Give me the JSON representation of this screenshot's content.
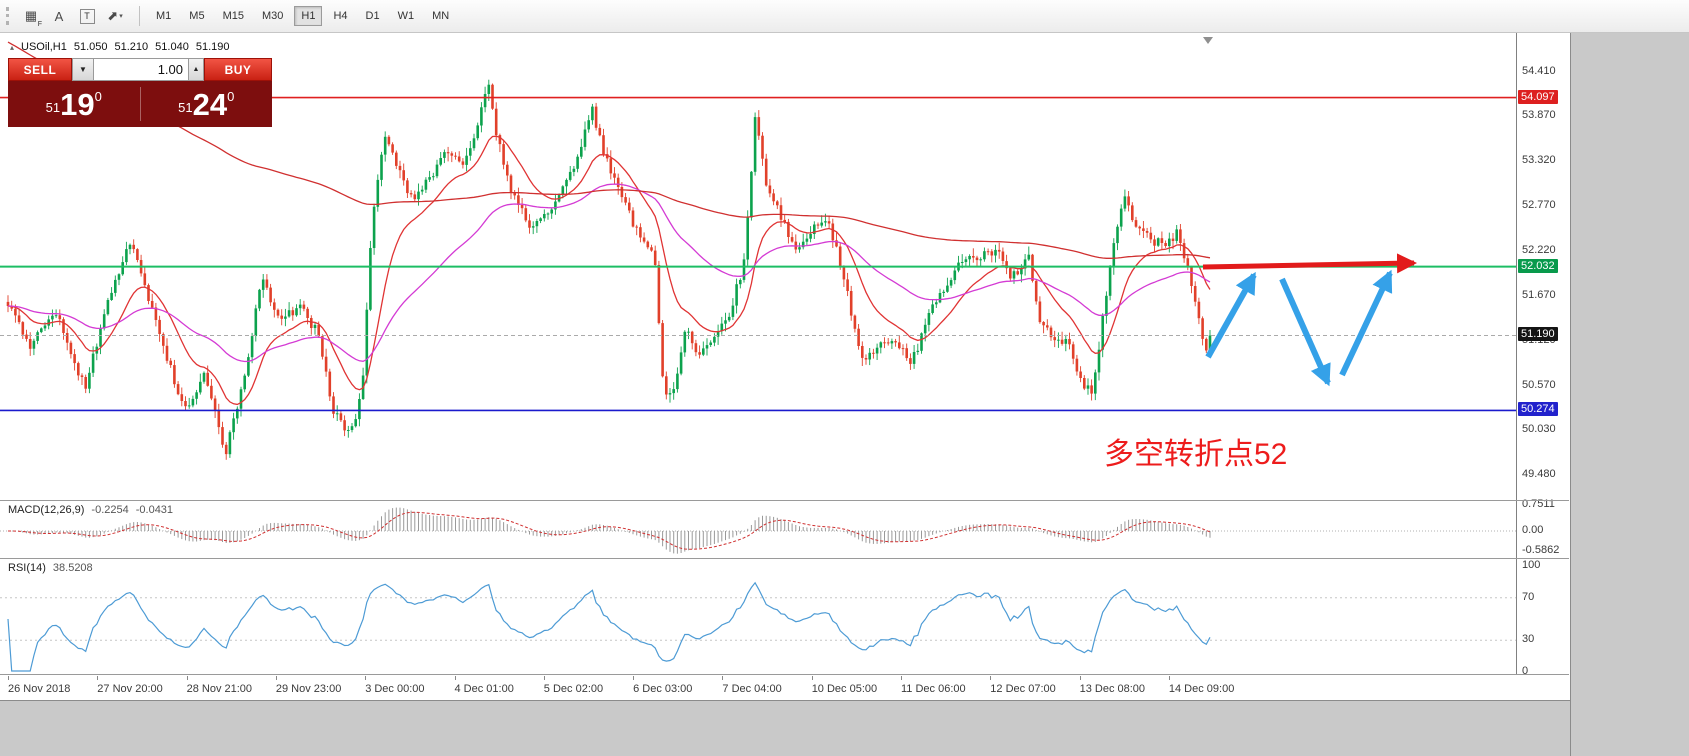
{
  "toolbar": {
    "tools": [
      {
        "name": "stamp-tool",
        "glyph": "▦",
        "sub": "F"
      },
      {
        "name": "text-tool",
        "glyph": "A"
      },
      {
        "name": "label-tool",
        "glyph": "T"
      },
      {
        "name": "arrows-tool",
        "glyph": "⬈",
        "caret": "▾"
      }
    ],
    "timeframes": [
      "M1",
      "M5",
      "M15",
      "M30",
      "H1",
      "H4",
      "D1",
      "W1",
      "MN"
    ],
    "active_timeframe": "H1"
  },
  "chart_header": {
    "collapse_icon": "▴",
    "symbol": "USOil,H1",
    "open": "51.050",
    "high": "51.210",
    "low": "51.040",
    "close": "51.190"
  },
  "trade_panel": {
    "sell_label": "SELL",
    "buy_label": "BUY",
    "volume": "1.00",
    "decrease_icon": "▼",
    "increase_icon": "▲",
    "sell_price": {
      "prefix": "51",
      "big": "19",
      "pip": "0"
    },
    "buy_price": {
      "prefix": "51",
      "big": "24",
      "pip": "0"
    }
  },
  "price_axis": {
    "labels": [
      "54.410",
      "53.870",
      "53.320",
      "52.770",
      "52.220",
      "51.670",
      "51.120",
      "50.570",
      "50.030",
      "49.480"
    ],
    "badges": [
      {
        "value": "54.097",
        "bg": "#DD2020"
      },
      {
        "value": "52.032",
        "bg": "#089A4C"
      },
      {
        "value": "51.190",
        "bg": "#141414"
      },
      {
        "value": "50.274",
        "bg": "#2222CC"
      }
    ]
  },
  "time_axis": {
    "labels": [
      "26 Nov 2018",
      "27 Nov 20:00",
      "28 Nov 21:00",
      "29 Nov 23:00",
      "3 Dec 00:00",
      "4 Dec 01:00",
      "5 Dec 02:00",
      "6 Dec 03:00",
      "7 Dec 04:00",
      "10 Dec 05:00",
      "11 Dec 06:00",
      "12 Dec 07:00",
      "13 Dec 08:00",
      "14 Dec 09:00"
    ]
  },
  "indicators": {
    "macd": {
      "label": "MACD(12,26,9)",
      "value_main": "-0.2254",
      "value_signal": "-0.0431",
      "axis": [
        "0.7511",
        "0.00",
        "-0.5862"
      ]
    },
    "rsi": {
      "label": "RSI(14)",
      "value": "38.5208",
      "axis": [
        "100",
        "70",
        "30",
        "0"
      ]
    }
  },
  "annotations": {
    "note_text": "多空转折点52",
    "note_color": "#ED1C1C",
    "trend_arrow_color": "#E21B1B",
    "zigzag_color": "#35A1E8"
  },
  "chart_data": {
    "type": "candlestick",
    "symbol": "USOil",
    "timeframe": "H1",
    "last_ohlc": {
      "open": 51.05,
      "high": 51.21,
      "low": 51.04,
      "close": 51.19
    },
    "y_axis": {
      "min": 49.2,
      "max": 54.85,
      "tick_step": 0.55
    },
    "up_color": "#0CA24D",
    "down_color": "#E1402A",
    "hlines": [
      {
        "price": 54.097,
        "color": "#E02020",
        "width": 1.6
      },
      {
        "price": 52.032,
        "color": "#1DBE64",
        "width": 2
      },
      {
        "price": 50.274,
        "color": "#1A1ACD",
        "width": 1.6
      },
      {
        "price": 51.19,
        "color": "#aaaaaa",
        "width": 1,
        "style": "dashed"
      }
    ],
    "candle_count": 326,
    "price_path": [
      [
        0.0,
        51.6
      ],
      [
        0.018,
        51.05
      ],
      [
        0.039,
        51.5
      ],
      [
        0.064,
        50.55
      ],
      [
        0.085,
        51.7
      ],
      [
        0.101,
        52.35
      ],
      [
        0.118,
        51.6
      ],
      [
        0.133,
        50.9
      ],
      [
        0.147,
        50.25
      ],
      [
        0.164,
        50.7
      ],
      [
        0.181,
        49.75
      ],
      [
        0.197,
        50.7
      ],
      [
        0.211,
        51.9
      ],
      [
        0.226,
        51.35
      ],
      [
        0.243,
        51.55
      ],
      [
        0.258,
        51.2
      ],
      [
        0.27,
        50.3
      ],
      [
        0.285,
        49.95
      ],
      [
        0.295,
        50.6
      ],
      [
        0.303,
        52.6
      ],
      [
        0.314,
        53.65
      ],
      [
        0.326,
        53.2
      ],
      [
        0.336,
        52.85
      ],
      [
        0.351,
        53.1
      ],
      [
        0.366,
        53.45
      ],
      [
        0.378,
        53.3
      ],
      [
        0.389,
        53.6
      ],
      [
        0.399,
        54.3
      ],
      [
        0.407,
        53.6
      ],
      [
        0.419,
        52.95
      ],
      [
        0.434,
        52.5
      ],
      [
        0.449,
        52.65
      ],
      [
        0.463,
        53.0
      ],
      [
        0.474,
        53.35
      ],
      [
        0.486,
        53.95
      ],
      [
        0.497,
        53.35
      ],
      [
        0.511,
        52.85
      ],
      [
        0.526,
        52.4
      ],
      [
        0.538,
        52.15
      ],
      [
        0.545,
        50.55
      ],
      [
        0.552,
        50.4
      ],
      [
        0.563,
        51.25
      ],
      [
        0.576,
        50.95
      ],
      [
        0.588,
        51.15
      ],
      [
        0.601,
        51.5
      ],
      [
        0.613,
        52.1
      ],
      [
        0.622,
        53.95
      ],
      [
        0.63,
        53.1
      ],
      [
        0.641,
        52.7
      ],
      [
        0.655,
        52.25
      ],
      [
        0.669,
        52.5
      ],
      [
        0.682,
        52.65
      ],
      [
        0.696,
        51.85
      ],
      [
        0.71,
        50.85
      ],
      [
        0.724,
        51.05
      ],
      [
        0.738,
        51.15
      ],
      [
        0.752,
        50.85
      ],
      [
        0.765,
        51.4
      ],
      [
        0.78,
        51.8
      ],
      [
        0.794,
        52.1
      ],
      [
        0.809,
        52.15
      ],
      [
        0.824,
        52.2
      ],
      [
        0.835,
        51.9
      ],
      [
        0.849,
        52.15
      ],
      [
        0.859,
        51.35
      ],
      [
        0.871,
        51.15
      ],
      [
        0.882,
        51.1
      ],
      [
        0.892,
        50.65
      ],
      [
        0.902,
        50.45
      ],
      [
        0.91,
        51.3
      ],
      [
        0.918,
        52.2
      ],
      [
        0.929,
        52.85
      ],
      [
        0.94,
        52.5
      ],
      [
        0.952,
        52.35
      ],
      [
        0.963,
        52.3
      ],
      [
        0.973,
        52.45
      ],
      [
        0.983,
        51.9
      ],
      [
        0.992,
        51.3
      ],
      [
        0.997,
        51.05
      ],
      [
        1.0,
        51.19
      ]
    ],
    "moving_averages": [
      {
        "period": 16,
        "color": "#E03434"
      },
      {
        "period": 55,
        "color": "#D43BD4"
      },
      {
        "period": 260,
        "color": "#D03030",
        "seed": 54.8
      }
    ]
  }
}
